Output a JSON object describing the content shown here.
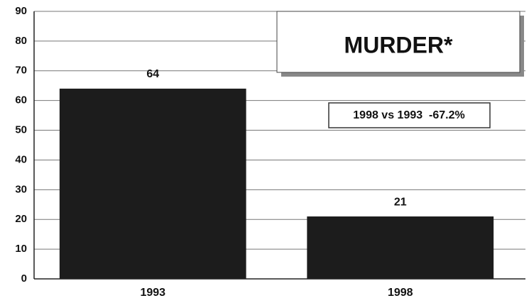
{
  "chart_data": {
    "type": "bar",
    "title": "MURDER*",
    "annotation": "1998 vs 1993  -67.2%",
    "categories": [
      "1993",
      "1998"
    ],
    "values": [
      64,
      21
    ],
    "color": "#1c1c1c",
    "ylim": [
      0,
      90
    ],
    "yticks": [
      0,
      10,
      20,
      30,
      40,
      50,
      60,
      70,
      80,
      90
    ],
    "grid": true
  }
}
